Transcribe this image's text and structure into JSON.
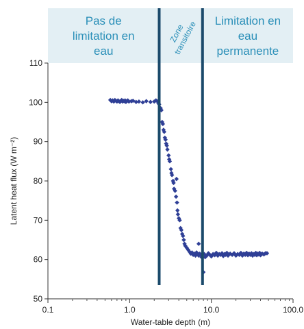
{
  "chart_data": {
    "type": "scatter",
    "xlabel": "Water-table depth (m)",
    "ylabel": "Latent heat flux (W m⁻²)",
    "x_scale": "log",
    "xlim": [
      0.1,
      100.0
    ],
    "ylim": [
      50,
      110
    ],
    "x_ticks": [
      0.1,
      1.0,
      10.0,
      100.0
    ],
    "x_tick_labels": [
      "0.1",
      "1.0",
      "10.0",
      "100.0"
    ],
    "y_ticks": [
      50,
      60,
      70,
      80,
      90,
      100,
      110
    ],
    "y_tick_labels": [
      "50",
      "60",
      "70",
      "80",
      "90",
      "100",
      "110"
    ],
    "marker_color": "#2f3f96",
    "boundary_color": "#1b4a6b",
    "header_color": "#e3eff4",
    "region_text_color": "#2a8fb8",
    "regions": [
      {
        "label_lines": [
          "Pas de",
          "limitation en",
          "eau"
        ],
        "x_range": [
          0.1,
          2.3
        ]
      },
      {
        "label_lines": [
          "Zone",
          "transitoire"
        ],
        "x_range": [
          2.3,
          7.8
        ]
      },
      {
        "label_lines": [
          "Limitation en",
          "eau",
          "permanente"
        ],
        "x_range": [
          7.8,
          100.0
        ]
      }
    ],
    "boundaries_x": [
      2.3,
      7.8
    ],
    "points": [
      [
        0.58,
        100.6
      ],
      [
        0.6,
        100.3
      ],
      [
        0.62,
        100.5
      ],
      [
        0.64,
        100.2
      ],
      [
        0.66,
        100.6
      ],
      [
        0.68,
        100.4
      ],
      [
        0.7,
        100.2
      ],
      [
        0.72,
        100.5
      ],
      [
        0.74,
        100.3
      ],
      [
        0.76,
        100.1
      ],
      [
        0.78,
        100.4
      ],
      [
        0.8,
        100.6
      ],
      [
        0.82,
        100.2
      ],
      [
        0.84,
        100.4
      ],
      [
        0.86,
        100.3
      ],
      [
        0.88,
        100.5
      ],
      [
        0.9,
        100.1
      ],
      [
        0.92,
        100.3
      ],
      [
        0.95,
        100.5
      ],
      [
        0.98,
        100.2
      ],
      [
        1.05,
        100.3
      ],
      [
        1.1,
        100.4
      ],
      [
        1.2,
        100.1
      ],
      [
        1.3,
        100.2
      ],
      [
        1.45,
        100.0
      ],
      [
        1.6,
        100.3
      ],
      [
        1.8,
        100.1
      ],
      [
        2.0,
        100.2
      ],
      [
        2.1,
        100.5
      ],
      [
        2.2,
        100.2
      ],
      [
        2.25,
        99.8
      ],
      [
        2.3,
        99.5
      ],
      [
        2.4,
        98.5
      ],
      [
        2.45,
        98.0
      ],
      [
        2.5,
        95.0
      ],
      [
        2.55,
        94.5
      ],
      [
        2.6,
        93.0
      ],
      [
        2.65,
        92.5
      ],
      [
        2.7,
        91.0
      ],
      [
        2.75,
        90.5
      ],
      [
        2.8,
        89.5
      ],
      [
        2.85,
        89.0
      ],
      [
        2.9,
        88.0
      ],
      [
        3.0,
        86.5
      ],
      [
        3.05,
        85.5
      ],
      [
        3.1,
        85.0
      ],
      [
        3.2,
        83.0
      ],
      [
        3.25,
        82.0
      ],
      [
        3.3,
        81.5
      ],
      [
        3.4,
        80.0
      ],
      [
        3.45,
        79.5
      ],
      [
        3.5,
        78.0
      ],
      [
        3.6,
        77.5
      ],
      [
        3.7,
        76.0
      ],
      [
        3.75,
        80.5
      ],
      [
        3.8,
        74.5
      ],
      [
        3.85,
        72.5
      ],
      [
        3.9,
        71.5
      ],
      [
        4.0,
        70.5
      ],
      [
        4.1,
        70.0
      ],
      [
        4.2,
        68.0
      ],
      [
        4.3,
        67.5
      ],
      [
        4.4,
        66.5
      ],
      [
        4.5,
        66.0
      ],
      [
        4.6,
        65.0
      ],
      [
        4.7,
        64.0
      ],
      [
        4.8,
        63.5
      ],
      [
        5.0,
        63.0
      ],
      [
        5.2,
        62.5
      ],
      [
        5.4,
        62.0
      ],
      [
        5.6,
        61.5
      ],
      [
        5.8,
        61.8
      ],
      [
        6.0,
        61.2
      ],
      [
        6.2,
        61.5
      ],
      [
        6.4,
        61.0
      ],
      [
        6.6,
        61.8
      ],
      [
        6.8,
        61.3
      ],
      [
        7.0,
        61.0
      ],
      [
        7.0,
        64.0
      ],
      [
        7.2,
        61.5
      ],
      [
        7.4,
        61.2
      ],
      [
        7.6,
        60.6
      ],
      [
        8.0,
        56.8
      ],
      [
        8.2,
        61.4
      ],
      [
        8.4,
        60.6
      ],
      [
        8.8,
        61.0
      ],
      [
        9.2,
        61.6
      ],
      [
        9.6,
        61.2
      ],
      [
        10.0,
        60.8
      ],
      [
        10.5,
        61.4
      ],
      [
        11.0,
        61.1
      ],
      [
        11.5,
        61.7
      ],
      [
        12.0,
        61.0
      ],
      [
        12.5,
        61.4
      ],
      [
        13.0,
        61.2
      ],
      [
        13.5,
        61.6
      ],
      [
        14.0,
        60.9
      ],
      [
        14.5,
        61.4
      ],
      [
        15.0,
        61.2
      ],
      [
        15.5,
        61.7
      ],
      [
        16.0,
        61.0
      ],
      [
        17.0,
        61.5
      ],
      [
        18.0,
        61.2
      ],
      [
        19.0,
        61.6
      ],
      [
        20.0,
        61.0
      ],
      [
        21.0,
        61.4
      ],
      [
        22.0,
        61.2
      ],
      [
        23.0,
        61.7
      ],
      [
        24.0,
        61.0
      ],
      [
        25.0,
        61.5
      ],
      [
        26.0,
        61.2
      ],
      [
        27.0,
        61.7
      ],
      [
        28.0,
        61.1
      ],
      [
        29.0,
        61.5
      ],
      [
        30.0,
        61.2
      ],
      [
        31.0,
        61.6
      ],
      [
        32.0,
        61.0
      ],
      [
        33.0,
        61.4
      ],
      [
        34.0,
        61.2
      ],
      [
        35.0,
        61.7
      ],
      [
        36.0,
        61.1
      ],
      [
        37.0,
        61.5
      ],
      [
        38.0,
        61.3
      ],
      [
        39.0,
        61.7
      ],
      [
        40.0,
        61.1
      ],
      [
        42.0,
        61.5
      ],
      [
        44.0,
        61.3
      ],
      [
        46.0,
        61.6
      ],
      [
        48.0,
        61.6
      ]
    ]
  }
}
